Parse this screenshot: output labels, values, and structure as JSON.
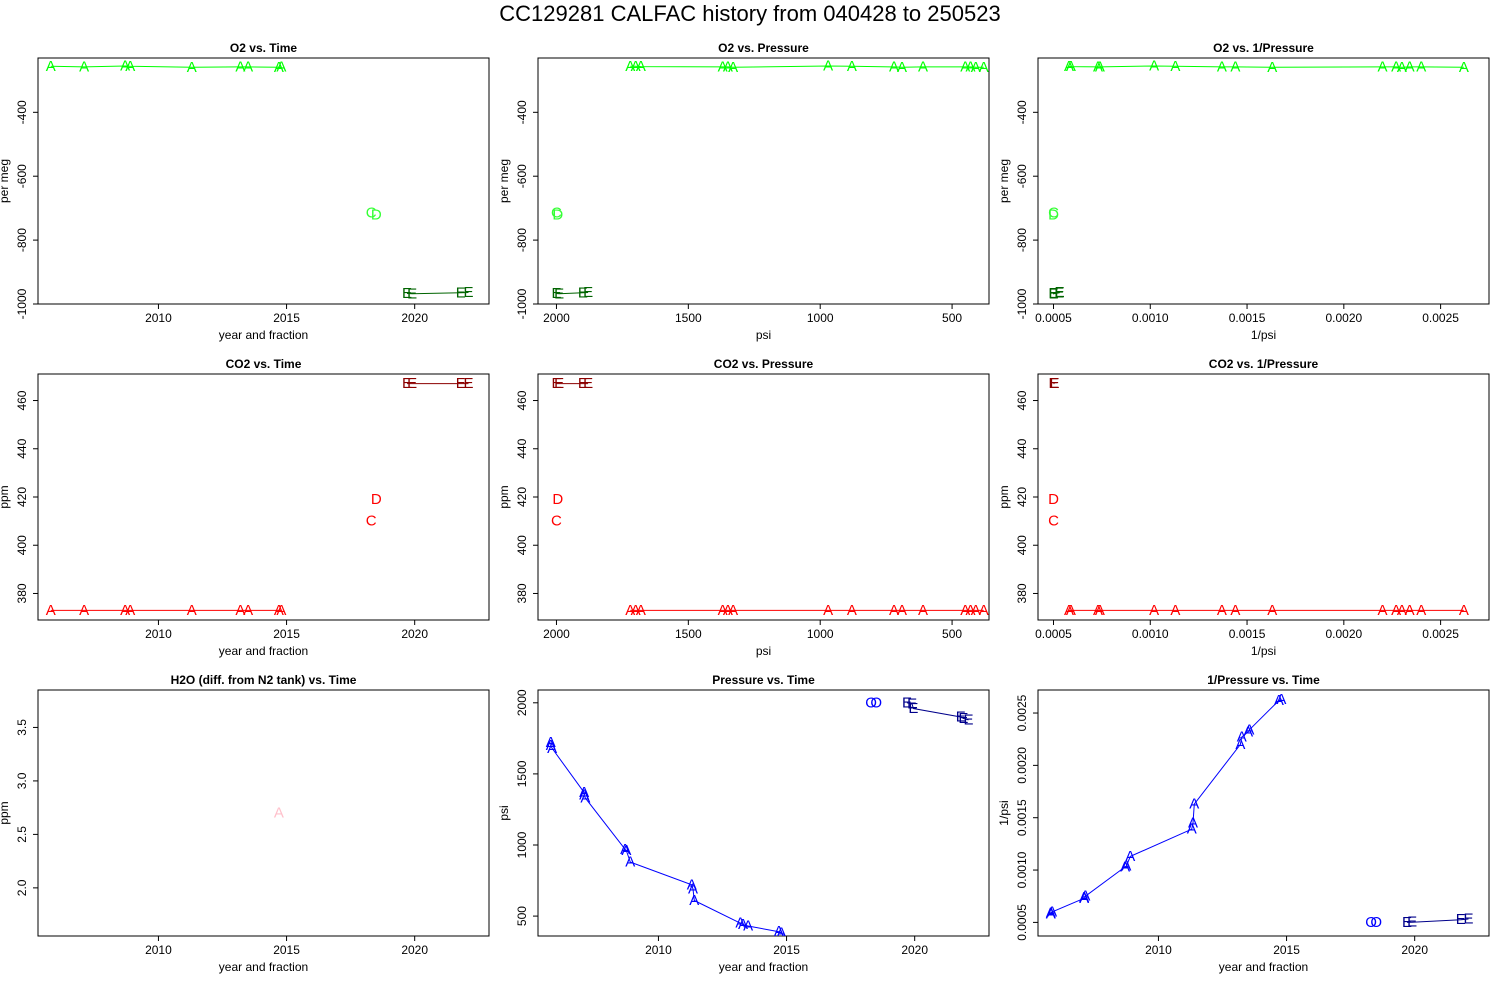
{
  "title": "CC129281   CALFAC history from  040428  to  250523",
  "colors": {
    "o2_A": "#00ff00",
    "o2_C": "#33ff33",
    "o2_D": "#33ff33",
    "o2_E": "#006400",
    "o2_line": "#00ff00",
    "co2_A": "#ff0000",
    "co2_C": "#ff0000",
    "co2_D": "#ff0000",
    "co2_E": "#8b0000",
    "co2_line": "#ff0000",
    "h2o_A": "#ffc0cb",
    "p_A": "#0000ff",
    "p_O": "#0000ff",
    "p_E": "#00008b",
    "p_line": "#0000ff"
  },
  "chart_data": [
    {
      "type": "scatter",
      "title": "O2 vs. Time",
      "xlabel": "year and fraction",
      "ylabel": "per meg",
      "xlim": [
        2005.3,
        2022.9
      ],
      "ylim": [
        -1000,
        -230
      ],
      "xticks": [
        2010,
        2015,
        2020
      ],
      "yticks": [
        -1000,
        -800,
        -600,
        -400
      ],
      "ytick_labels": [
        "-1000",
        "-800",
        "-600",
        "-400"
      ],
      "color_key": "o2",
      "series": [
        {
          "label": "A",
          "line": true,
          "points": [
            [
              2005.8,
              -256
            ],
            [
              2007.1,
              -258
            ],
            [
              2008.7,
              -255
            ],
            [
              2008.9,
              -256
            ],
            [
              2011.3,
              -259
            ],
            [
              2013.2,
              -258
            ],
            [
              2013.5,
              -258
            ],
            [
              2014.7,
              -259
            ],
            [
              2014.8,
              -258
            ]
          ]
        },
        {
          "label": "C",
          "line": false,
          "points": [
            [
              2018.3,
              -715
            ]
          ]
        },
        {
          "label": "D",
          "line": false,
          "points": [
            [
              2018.5,
              -722
            ]
          ]
        },
        {
          "label": "E",
          "line": true,
          "points": [
            [
              2019.7,
              -967
            ],
            [
              2019.9,
              -968
            ],
            [
              2021.8,
              -965
            ],
            [
              2022.1,
              -964
            ]
          ]
        }
      ]
    },
    {
      "type": "scatter",
      "title": "O2 vs. Pressure",
      "xlabel": "psi",
      "ylabel": "per meg",
      "xlim": [
        2070,
        360
      ],
      "ylim": [
        -1000,
        -230
      ],
      "xticks": [
        2000,
        1500,
        1000,
        500
      ],
      "yticks": [
        -1000,
        -800,
        -600,
        -400
      ],
      "ytick_labels": [
        "-1000",
        "-800",
        "-600",
        "-400"
      ],
      "color_key": "o2",
      "series": [
        {
          "label": "A",
          "line": true,
          "points": [
            [
              1720,
              -256
            ],
            [
              1700,
              -256
            ],
            [
              1680,
              -257
            ],
            [
              1370,
              -258
            ],
            [
              1350,
              -258
            ],
            [
              1330,
              -259
            ],
            [
              970,
              -255
            ],
            [
              880,
              -256
            ],
            [
              720,
              -258
            ],
            [
              690,
              -259
            ],
            [
              610,
              -258
            ],
            [
              450,
              -258
            ],
            [
              430,
              -258
            ],
            [
              410,
              -259
            ],
            [
              380,
              -259
            ]
          ]
        },
        {
          "label": "C",
          "line": false,
          "points": [
            [
              2000,
              -715
            ]
          ]
        },
        {
          "label": "D",
          "line": false,
          "points": [
            [
              1995,
              -722
            ]
          ]
        },
        {
          "label": "E",
          "line": true,
          "points": [
            [
              2000,
              -967
            ],
            [
              1990,
              -968
            ],
            [
              1900,
              -965
            ],
            [
              1880,
              -964
            ]
          ]
        }
      ]
    },
    {
      "type": "scatter",
      "title": "O2 vs. 1/Pressure",
      "xlabel": "1/psi",
      "ylabel": "per meg",
      "xlim": [
        0.00042,
        0.00275
      ],
      "ylim": [
        -1000,
        -230
      ],
      "xticks": [
        0.0005,
        0.001,
        0.0015,
        0.002,
        0.0025
      ],
      "xtick_labels": [
        "0.0005",
        "0.0010",
        "0.0015",
        "0.0020",
        "0.0025"
      ],
      "yticks": [
        -1000,
        -800,
        -600,
        -400
      ],
      "ytick_labels": [
        "-1000",
        "-800",
        "-600",
        "-400"
      ],
      "color_key": "o2",
      "series": [
        {
          "label": "A",
          "line": true,
          "points": [
            [
              0.00058,
              -256
            ],
            [
              0.00059,
              -257
            ],
            [
              0.00073,
              -258
            ],
            [
              0.00074,
              -258
            ],
            [
              0.00102,
              -255
            ],
            [
              0.00113,
              -256
            ],
            [
              0.00137,
              -258
            ],
            [
              0.00144,
              -258
            ],
            [
              0.00163,
              -259
            ],
            [
              0.0022,
              -258
            ],
            [
              0.00227,
              -258
            ],
            [
              0.0023,
              -259
            ],
            [
              0.00234,
              -258
            ],
            [
              0.0024,
              -258
            ],
            [
              0.00262,
              -259
            ]
          ]
        },
        {
          "label": "C",
          "line": false,
          "points": [
            [
              0.0005,
              -715
            ]
          ]
        },
        {
          "label": "D",
          "line": false,
          "points": [
            [
              0.0005,
              -722
            ]
          ]
        },
        {
          "label": "E",
          "line": true,
          "points": [
            [
              0.0005,
              -967
            ],
            [
              0.0005,
              -968
            ],
            [
              0.00053,
              -965
            ],
            [
              0.000532,
              -964
            ]
          ]
        }
      ]
    },
    {
      "type": "scatter",
      "title": "CO2 vs. Time",
      "xlabel": "year and fraction",
      "ylabel": "ppm",
      "xlim": [
        2005.3,
        2022.9
      ],
      "ylim": [
        369,
        471
      ],
      "xticks": [
        2010,
        2015,
        2020
      ],
      "yticks": [
        380,
        400,
        420,
        440,
        460
      ],
      "color_key": "co2",
      "series": [
        {
          "label": "A",
          "line": true,
          "points": [
            [
              2005.8,
              373
            ],
            [
              2007.1,
              373
            ],
            [
              2008.7,
              373
            ],
            [
              2008.9,
              373
            ],
            [
              2011.3,
              373
            ],
            [
              2013.2,
              373
            ],
            [
              2013.5,
              373
            ],
            [
              2014.7,
              373
            ],
            [
              2014.8,
              373
            ]
          ]
        },
        {
          "label": "C",
          "line": false,
          "points": [
            [
              2018.3,
              410
            ]
          ]
        },
        {
          "label": "D",
          "line": false,
          "points": [
            [
              2018.5,
              419
            ]
          ]
        },
        {
          "label": "E",
          "line": true,
          "points": [
            [
              2019.7,
              467
            ],
            [
              2019.9,
              467
            ],
            [
              2021.8,
              467
            ],
            [
              2022.1,
              467
            ]
          ]
        }
      ]
    },
    {
      "type": "scatter",
      "title": "CO2 vs. Pressure",
      "xlabel": "psi",
      "ylabel": "ppm",
      "xlim": [
        2070,
        360
      ],
      "ylim": [
        369,
        471
      ],
      "xticks": [
        2000,
        1500,
        1000,
        500
      ],
      "yticks": [
        380,
        400,
        420,
        440,
        460
      ],
      "color_key": "co2",
      "series": [
        {
          "label": "A",
          "line": true,
          "points": [
            [
              1720,
              373
            ],
            [
              1700,
              373
            ],
            [
              1680,
              373
            ],
            [
              1370,
              373
            ],
            [
              1350,
              373
            ],
            [
              1330,
              373
            ],
            [
              970,
              373
            ],
            [
              880,
              373
            ],
            [
              720,
              373
            ],
            [
              690,
              373
            ],
            [
              610,
              373
            ],
            [
              450,
              373
            ],
            [
              430,
              373
            ],
            [
              410,
              373
            ],
            [
              380,
              373
            ]
          ]
        },
        {
          "label": "C",
          "line": false,
          "points": [
            [
              2000,
              410
            ]
          ]
        },
        {
          "label": "D",
          "line": false,
          "points": [
            [
              1995,
              419
            ]
          ]
        },
        {
          "label": "E",
          "line": true,
          "points": [
            [
              2000,
              467
            ],
            [
              1990,
              467
            ],
            [
              1900,
              467
            ],
            [
              1880,
              467
            ]
          ]
        }
      ]
    },
    {
      "type": "scatter",
      "title": "CO2 vs. 1/Pressure",
      "xlabel": "1/psi",
      "ylabel": "ppm",
      "xlim": [
        0.00042,
        0.00275
      ],
      "ylim": [
        369,
        471
      ],
      "xticks": [
        0.0005,
        0.001,
        0.0015,
        0.002,
        0.0025
      ],
      "xtick_labels": [
        "0.0005",
        "0.0010",
        "0.0015",
        "0.0020",
        "0.0025"
      ],
      "yticks": [
        380,
        400,
        420,
        440,
        460
      ],
      "color_key": "co2",
      "series": [
        {
          "label": "A",
          "line": true,
          "points": [
            [
              0.00058,
              373
            ],
            [
              0.00059,
              373
            ],
            [
              0.00073,
              373
            ],
            [
              0.00074,
              373
            ],
            [
              0.00102,
              373
            ],
            [
              0.00113,
              373
            ],
            [
              0.00137,
              373
            ],
            [
              0.00144,
              373
            ],
            [
              0.00163,
              373
            ],
            [
              0.0022,
              373
            ],
            [
              0.00227,
              373
            ],
            [
              0.0023,
              373
            ],
            [
              0.00234,
              373
            ],
            [
              0.0024,
              373
            ],
            [
              0.00262,
              373
            ]
          ]
        },
        {
          "label": "C",
          "line": false,
          "points": [
            [
              0.0005,
              410
            ]
          ]
        },
        {
          "label": "D",
          "line": false,
          "points": [
            [
              0.0005,
              419
            ]
          ]
        },
        {
          "label": "E",
          "line": true,
          "points": [
            [
              0.0005,
              467
            ],
            [
              0.000502,
              467
            ],
            [
              0.000505,
              467
            ]
          ]
        }
      ]
    },
    {
      "type": "scatter",
      "title": "H2O (diff. from N2 tank) vs. Time",
      "xlabel": "year and fraction",
      "ylabel": "ppm",
      "xlim": [
        2005.3,
        2022.9
      ],
      "ylim": [
        1.55,
        3.85
      ],
      "xticks": [
        2010,
        2015,
        2020
      ],
      "yticks": [
        2.0,
        2.5,
        3.0,
        3.5
      ],
      "ytick_labels": [
        "2.0",
        "2.5",
        "3.0",
        "3.5"
      ],
      "color_key": "h2o",
      "series": [
        {
          "label": "A",
          "line": false,
          "points": [
            [
              2014.7,
              2.7
            ]
          ]
        }
      ]
    },
    {
      "type": "scatter",
      "title": "Pressure vs. Time",
      "xlabel": "year and fraction",
      "ylabel": "psi",
      "xlim": [
        2005.3,
        2022.9
      ],
      "ylim": [
        360,
        2090
      ],
      "xticks": [
        2010,
        2015,
        2020
      ],
      "yticks": [
        500,
        1000,
        1500,
        2000
      ],
      "color_key": "p",
      "series": [
        {
          "label": "A",
          "line": true,
          "points": [
            [
              2005.8,
              1720
            ],
            [
              2005.8,
              1700
            ],
            [
              2005.85,
              1680
            ],
            [
              2007.1,
              1370
            ],
            [
              2007.1,
              1350
            ],
            [
              2007.15,
              1330
            ],
            [
              2008.7,
              970
            ],
            [
              2008.75,
              960
            ],
            [
              2008.9,
              880
            ],
            [
              2011.3,
              720
            ],
            [
              2011.35,
              690
            ],
            [
              2011.4,
              610
            ],
            [
              2013.2,
              450
            ],
            [
              2013.3,
              440
            ],
            [
              2013.5,
              430
            ],
            [
              2014.7,
              390
            ],
            [
              2014.8,
              380
            ]
          ]
        },
        {
          "label": "O",
          "line": false,
          "points": [
            [
              2018.3,
              2000
            ],
            [
              2018.5,
              2000
            ]
          ]
        },
        {
          "label": "E",
          "line": true,
          "points": [
            [
              2019.7,
              2000
            ],
            [
              2019.9,
              1990
            ],
            [
              2019.95,
              1960
            ],
            [
              2021.8,
              1900
            ],
            [
              2021.9,
              1890
            ],
            [
              2022.1,
              1880
            ]
          ]
        }
      ]
    },
    {
      "type": "scatter",
      "title": "1/Pressure vs. Time",
      "xlabel": "year and fraction",
      "ylabel": "1/psi",
      "xlim": [
        2005.3,
        2022.9
      ],
      "ylim": [
        0.00037,
        0.00272
      ],
      "xticks": [
        2010,
        2015,
        2020
      ],
      "yticks": [
        0.0005,
        0.001,
        0.0015,
        0.002,
        0.0025
      ],
      "ytick_labels": [
        "0.0005",
        "0.0010",
        "0.0015",
        "0.0020",
        "0.0025"
      ],
      "color_key": "p",
      "series": [
        {
          "label": "A",
          "line": true,
          "points": [
            [
              2005.8,
              0.00058
            ],
            [
              2005.8,
              0.00059
            ],
            [
              2005.85,
              0.0006
            ],
            [
              2007.1,
              0.00073
            ],
            [
              2007.1,
              0.00074
            ],
            [
              2007.15,
              0.00075
            ],
            [
              2008.7,
              0.00103
            ],
            [
              2008.75,
              0.00104
            ],
            [
              2008.9,
              0.00113
            ],
            [
              2011.3,
              0.00139
            ],
            [
              2011.35,
              0.00145
            ],
            [
              2011.4,
              0.00163
            ],
            [
              2013.2,
              0.0022
            ],
            [
              2013.25,
              0.00227
            ],
            [
              2013.5,
              0.00232
            ],
            [
              2013.55,
              0.00234
            ],
            [
              2014.7,
              0.00262
            ],
            [
              2014.8,
              0.00263
            ]
          ]
        },
        {
          "label": "O",
          "line": false,
          "points": [
            [
              2018.3,
              0.0005
            ],
            [
              2018.5,
              0.0005
            ]
          ]
        },
        {
          "label": "E",
          "line": true,
          "points": [
            [
              2019.7,
              0.0005
            ],
            [
              2019.9,
              0.000502
            ],
            [
              2021.8,
              0.000526
            ],
            [
              2022.1,
              0.000532
            ]
          ]
        }
      ]
    }
  ]
}
